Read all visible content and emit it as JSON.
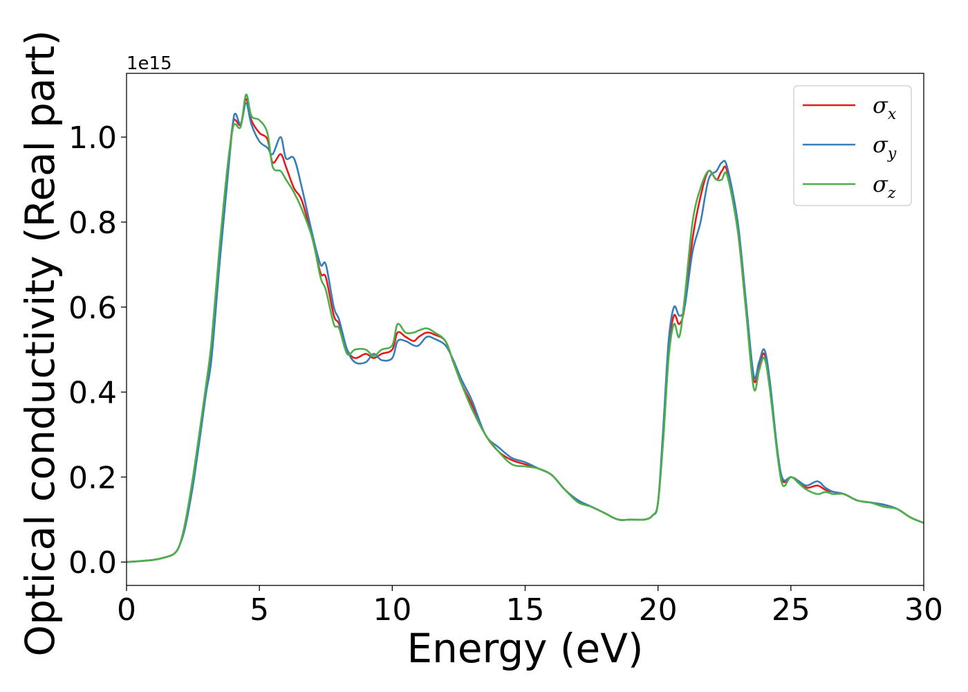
{
  "chart_data": {
    "type": "line",
    "xlabel": "Energy (eV)",
    "ylabel": "Optical conductivity (Real part)",
    "y_offset_text": "1e15",
    "xlim": [
      0,
      30
    ],
    "ylim": [
      -0.055,
      1.15
    ],
    "x_ticks": [
      0,
      5,
      10,
      15,
      20,
      25,
      30
    ],
    "y_ticks": [
      0.0,
      0.2,
      0.4,
      0.6,
      0.8,
      1.0
    ],
    "x_tick_labels": [
      "0",
      "5",
      "10",
      "15",
      "20",
      "25",
      "30"
    ],
    "y_tick_labels": [
      "0.0",
      "0.2",
      "0.4",
      "0.6",
      "0.8",
      "1.0"
    ],
    "grid": false,
    "legend_position": "top-right",
    "series": [
      {
        "name": "σx",
        "legend_symbol": "σ",
        "legend_subscript": "x",
        "color": "#e41a1c",
        "x": [
          0,
          1,
          1.5,
          1.8,
          2.0,
          2.2,
          2.5,
          2.8,
          3.0,
          3.2,
          3.5,
          3.8,
          4.0,
          4.1,
          4.3,
          4.5,
          4.7,
          5.0,
          5.3,
          5.5,
          5.8,
          6.0,
          6.3,
          6.6,
          7.0,
          7.3,
          7.5,
          7.8,
          8.0,
          8.3,
          8.6,
          9.0,
          9.3,
          9.6,
          10.0,
          10.2,
          10.5,
          10.8,
          11.0,
          11.3,
          11.6,
          12.0,
          12.3,
          12.6,
          13.0,
          13.5,
          14.0,
          14.5,
          15.0,
          15.5,
          16.0,
          16.5,
          17.0,
          17.5,
          18.0,
          18.5,
          19.0,
          19.5,
          19.8,
          20.0,
          20.2,
          20.4,
          20.6,
          20.8,
          21.0,
          21.3,
          21.6,
          21.9,
          22.2,
          22.4,
          22.6,
          23.0,
          23.3,
          23.6,
          23.8,
          24.0,
          24.2,
          24.5,
          24.7,
          25.0,
          25.3,
          25.6,
          26.0,
          26.3,
          26.6,
          27.0,
          27.5,
          28.0,
          28.5,
          29.0,
          29.5,
          30.0
        ],
        "y": [
          0.0,
          0.005,
          0.012,
          0.02,
          0.04,
          0.09,
          0.19,
          0.32,
          0.41,
          0.5,
          0.72,
          0.92,
          1.03,
          1.04,
          1.03,
          1.09,
          1.04,
          1.01,
          0.995,
          0.94,
          0.96,
          0.93,
          0.88,
          0.85,
          0.76,
          0.68,
          0.67,
          0.58,
          0.56,
          0.5,
          0.48,
          0.49,
          0.48,
          0.49,
          0.5,
          0.54,
          0.53,
          0.52,
          0.53,
          0.54,
          0.535,
          0.52,
          0.47,
          0.42,
          0.37,
          0.3,
          0.26,
          0.24,
          0.23,
          0.22,
          0.205,
          0.17,
          0.145,
          0.13,
          0.115,
          0.1,
          0.1,
          0.1,
          0.11,
          0.14,
          0.3,
          0.5,
          0.58,
          0.56,
          0.6,
          0.76,
          0.86,
          0.92,
          0.9,
          0.92,
          0.92,
          0.78,
          0.6,
          0.43,
          0.46,
          0.49,
          0.42,
          0.25,
          0.19,
          0.2,
          0.19,
          0.175,
          0.18,
          0.17,
          0.165,
          0.16,
          0.145,
          0.14,
          0.135,
          0.125,
          0.105,
          0.092
        ]
      },
      {
        "name": "σy",
        "legend_symbol": "σ",
        "legend_subscript": "y",
        "color": "#377eb8",
        "x": [
          0,
          1,
          1.5,
          1.8,
          2.0,
          2.2,
          2.5,
          2.8,
          3.0,
          3.2,
          3.5,
          3.8,
          4.0,
          4.1,
          4.3,
          4.5,
          4.7,
          5.0,
          5.3,
          5.5,
          5.8,
          6.0,
          6.3,
          6.6,
          7.0,
          7.3,
          7.5,
          7.8,
          8.0,
          8.3,
          8.6,
          9.0,
          9.3,
          9.6,
          10.0,
          10.2,
          10.5,
          10.8,
          11.0,
          11.3,
          11.6,
          12.0,
          12.3,
          12.6,
          13.0,
          13.5,
          14.0,
          14.5,
          15.0,
          15.5,
          16.0,
          16.5,
          17.0,
          17.5,
          18.0,
          18.5,
          19.0,
          19.5,
          19.8,
          20.0,
          20.2,
          20.4,
          20.6,
          20.8,
          21.0,
          21.3,
          21.6,
          21.9,
          22.2,
          22.4,
          22.6,
          23.0,
          23.3,
          23.6,
          23.8,
          24.0,
          24.2,
          24.5,
          24.7,
          25.0,
          25.3,
          25.6,
          26.0,
          26.3,
          26.6,
          27.0,
          27.5,
          28.0,
          28.5,
          29.0,
          29.5,
          30.0
        ],
        "y": [
          0.0,
          0.005,
          0.012,
          0.02,
          0.04,
          0.08,
          0.18,
          0.31,
          0.4,
          0.48,
          0.7,
          0.9,
          1.03,
          1.055,
          1.03,
          1.08,
          1.03,
          0.99,
          0.975,
          0.96,
          1.0,
          0.95,
          0.95,
          0.88,
          0.77,
          0.7,
          0.7,
          0.6,
          0.57,
          0.5,
          0.47,
          0.47,
          0.49,
          0.475,
          0.48,
          0.52,
          0.52,
          0.51,
          0.51,
          0.53,
          0.525,
          0.51,
          0.475,
          0.43,
          0.38,
          0.3,
          0.27,
          0.245,
          0.235,
          0.22,
          0.205,
          0.17,
          0.145,
          0.13,
          0.115,
          0.1,
          0.1,
          0.1,
          0.11,
          0.14,
          0.32,
          0.52,
          0.6,
          0.58,
          0.6,
          0.73,
          0.8,
          0.9,
          0.92,
          0.94,
          0.93,
          0.8,
          0.62,
          0.44,
          0.47,
          0.5,
          0.43,
          0.26,
          0.195,
          0.2,
          0.19,
          0.18,
          0.19,
          0.175,
          0.165,
          0.16,
          0.145,
          0.14,
          0.135,
          0.125,
          0.105,
          0.092
        ]
      },
      {
        "name": "σz",
        "legend_symbol": "σ",
        "legend_subscript": "z",
        "color": "#4daf4a",
        "x": [
          0,
          1,
          1.5,
          1.8,
          2.0,
          2.2,
          2.5,
          2.8,
          3.0,
          3.2,
          3.5,
          3.8,
          4.0,
          4.1,
          4.3,
          4.5,
          4.7,
          5.0,
          5.3,
          5.5,
          5.8,
          6.0,
          6.3,
          6.6,
          7.0,
          7.3,
          7.5,
          7.8,
          8.0,
          8.3,
          8.6,
          9.0,
          9.3,
          9.6,
          10.0,
          10.2,
          10.5,
          10.8,
          11.0,
          11.3,
          11.6,
          12.0,
          12.3,
          12.6,
          13.0,
          13.5,
          14.0,
          14.5,
          15.0,
          15.5,
          16.0,
          16.5,
          17.0,
          17.5,
          18.0,
          18.5,
          19.0,
          19.5,
          19.8,
          20.0,
          20.2,
          20.4,
          20.6,
          20.8,
          21.0,
          21.3,
          21.6,
          21.9,
          22.2,
          22.4,
          22.6,
          23.0,
          23.3,
          23.6,
          23.8,
          24.0,
          24.2,
          24.5,
          24.7,
          25.0,
          25.3,
          25.6,
          26.0,
          26.3,
          26.6,
          27.0,
          27.5,
          28.0,
          28.5,
          29.0,
          29.5,
          30.0
        ],
        "y": [
          0.0,
          0.005,
          0.012,
          0.02,
          0.04,
          0.09,
          0.2,
          0.33,
          0.42,
          0.52,
          0.74,
          0.93,
          1.02,
          1.03,
          1.025,
          1.1,
          1.05,
          1.04,
          1.01,
          0.93,
          0.92,
          0.9,
          0.87,
          0.83,
          0.76,
          0.67,
          0.64,
          0.56,
          0.55,
          0.49,
          0.5,
          0.5,
          0.485,
          0.5,
          0.51,
          0.56,
          0.54,
          0.54,
          0.545,
          0.55,
          0.54,
          0.52,
          0.47,
          0.42,
          0.36,
          0.3,
          0.26,
          0.23,
          0.225,
          0.22,
          0.205,
          0.17,
          0.14,
          0.13,
          0.115,
          0.1,
          0.1,
          0.1,
          0.11,
          0.14,
          0.29,
          0.48,
          0.56,
          0.53,
          0.62,
          0.8,
          0.88,
          0.92,
          0.9,
          0.9,
          0.91,
          0.78,
          0.6,
          0.41,
          0.45,
          0.48,
          0.41,
          0.25,
          0.18,
          0.2,
          0.185,
          0.17,
          0.16,
          0.165,
          0.16,
          0.16,
          0.145,
          0.14,
          0.13,
          0.125,
          0.105,
          0.092
        ]
      }
    ]
  }
}
